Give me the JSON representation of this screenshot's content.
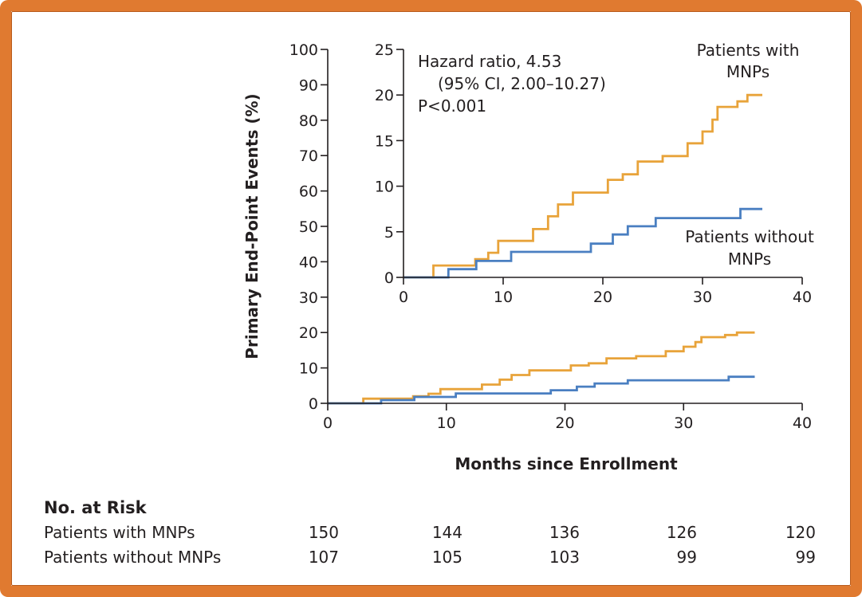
{
  "figure": {
    "frame_color": "#e07a30",
    "no_at_risk_heading": "No. at Risk",
    "risk_table": {
      "months": [
        0,
        10,
        20,
        30,
        40
      ],
      "rows": [
        {
          "label": "Patients with MNPs",
          "values": [
            "150",
            "144",
            "136",
            "126",
            "120"
          ]
        },
        {
          "label": "Patients without MNPs",
          "values": [
            "107",
            "105",
            "103",
            "99",
            "99"
          ]
        }
      ]
    }
  },
  "chart_data": [
    {
      "type": "line",
      "id": "main",
      "ylabel": "Primary End-Point Events (%)",
      "xlabel": "Months since Enrollment",
      "xlim": [
        0,
        40
      ],
      "ylim": [
        0,
        100
      ],
      "x_ticks": [
        "0",
        "10",
        "20",
        "30",
        "40"
      ],
      "y_ticks": [
        "0",
        "10",
        "20",
        "30",
        "40",
        "50",
        "60",
        "70",
        "80",
        "90",
        "100"
      ],
      "step": true,
      "series": [
        {
          "name": "Patients with MNPs",
          "color": "#e8a33a",
          "x": [
            0,
            3,
            3,
            7.2,
            7.2,
            8.5,
            8.5,
            9.5,
            9.5,
            13,
            13,
            14.5,
            14.5,
            15.5,
            15.5,
            17,
            17,
            20.5,
            20.5,
            22,
            22,
            23.5,
            23.5,
            26,
            26,
            28.5,
            28.5,
            30,
            30,
            31,
            31,
            31.5,
            31.5,
            33.5,
            33.5,
            34.5,
            34.5,
            36
          ],
          "y": [
            0,
            0,
            1.3,
            1.3,
            2,
            2,
            2.7,
            2.7,
            4,
            4,
            5.3,
            5.3,
            6.7,
            6.7,
            8,
            8,
            9.3,
            9.3,
            10.7,
            10.7,
            11.3,
            11.3,
            12.7,
            12.7,
            13.3,
            13.3,
            14.7,
            14.7,
            16,
            16,
            17.3,
            17.3,
            18.7,
            18.7,
            19.3,
            19.3,
            20,
            20
          ]
        },
        {
          "name": "Patients without MNPs",
          "color": "#4a7fc1",
          "x": [
            0,
            4.5,
            4.5,
            7.3,
            7.3,
            10.8,
            10.8,
            18.8,
            18.8,
            21,
            21,
            22.5,
            22.5,
            25.3,
            25.3,
            33.8,
            33.8,
            36
          ],
          "y": [
            0,
            0,
            0.9,
            0.9,
            1.8,
            1.8,
            2.8,
            2.8,
            3.7,
            3.7,
            4.7,
            4.7,
            5.6,
            5.6,
            6.5,
            6.5,
            7.5,
            7.5
          ]
        }
      ]
    },
    {
      "type": "line",
      "id": "inset",
      "xlim": [
        0,
        40
      ],
      "ylim": [
        0,
        25
      ],
      "x_ticks": [
        "0",
        "10",
        "20",
        "30",
        "40"
      ],
      "y_ticks": [
        "0",
        "5",
        "10",
        "15",
        "20",
        "25"
      ],
      "annotations": [
        "Hazard ratio, 4.53",
        "(95% CI, 2.00–10.27)",
        "P<0.001"
      ],
      "series_labels": [
        {
          "lines": [
            "Patients with",
            "MNPs"
          ]
        },
        {
          "lines": [
            "Patients without",
            "MNPs"
          ]
        }
      ],
      "step": true,
      "series_ref": "main"
    }
  ]
}
